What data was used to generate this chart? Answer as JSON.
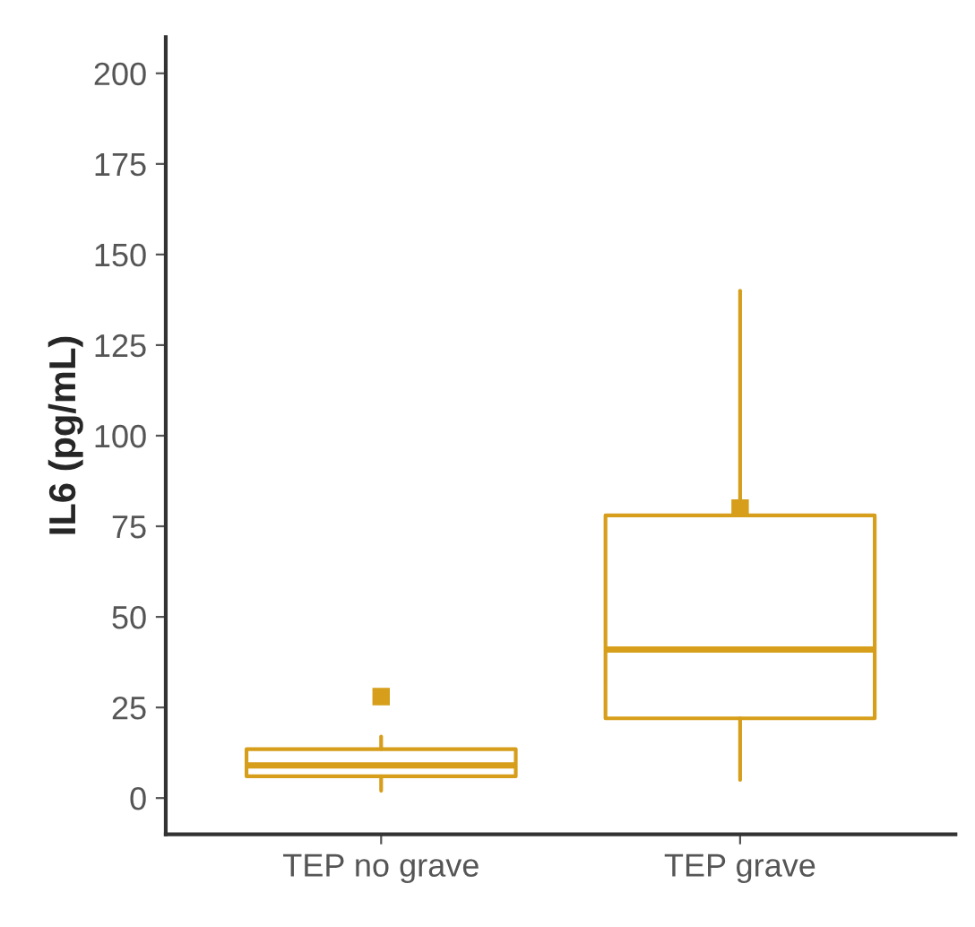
{
  "chart_data": {
    "type": "box",
    "ylabel": "IL6 (pg/mL)",
    "categories": [
      "TEP no grave",
      "TEP grave"
    ],
    "color": "#d69e1a",
    "boxes": [
      {
        "low": 2,
        "q1": 6,
        "median": 9,
        "q3": 13.5,
        "high": 17,
        "mean": 28
      },
      {
        "low": 5,
        "q1": 22,
        "median": 41,
        "q3": 78,
        "high": 140,
        "mean": 80
      }
    ],
    "ylim": [
      -10,
      210
    ],
    "yticks": [
      0,
      25,
      50,
      75,
      100,
      125,
      150,
      175,
      200
    ],
    "grid": false
  }
}
